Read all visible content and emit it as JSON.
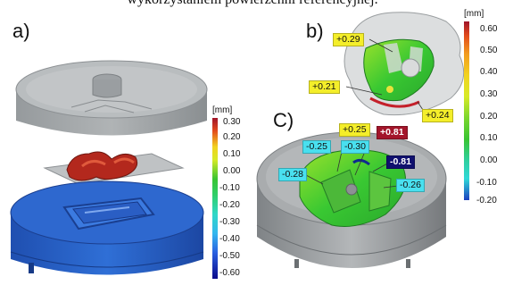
{
  "caption_fragment": "wykorzystaniem powierzchni referencyjnej.",
  "panels": {
    "a": "a)",
    "b": "b)",
    "c": "C)"
  },
  "scale_left": {
    "unit": "[mm]",
    "ticks": [
      "0.30",
      "0.20",
      "0.10",
      "0.00",
      "-0.10",
      "-0.20",
      "-0.30",
      "-0.40",
      "-0.50",
      "-0.60"
    ]
  },
  "scale_right": {
    "unit": "[mm]",
    "ticks": [
      "0.60",
      "0.50",
      "0.40",
      "0.30",
      "0.20",
      "0.10",
      "0.00",
      "-0.10",
      "-0.20"
    ]
  },
  "callouts_b": [
    "+0.29",
    "+0.21",
    "+0.24",
    "+0.25",
    "+0.81"
  ],
  "callouts_c": [
    "-0.25",
    "-0.30",
    "-0.28",
    "-0.81",
    "-0.26"
  ]
}
